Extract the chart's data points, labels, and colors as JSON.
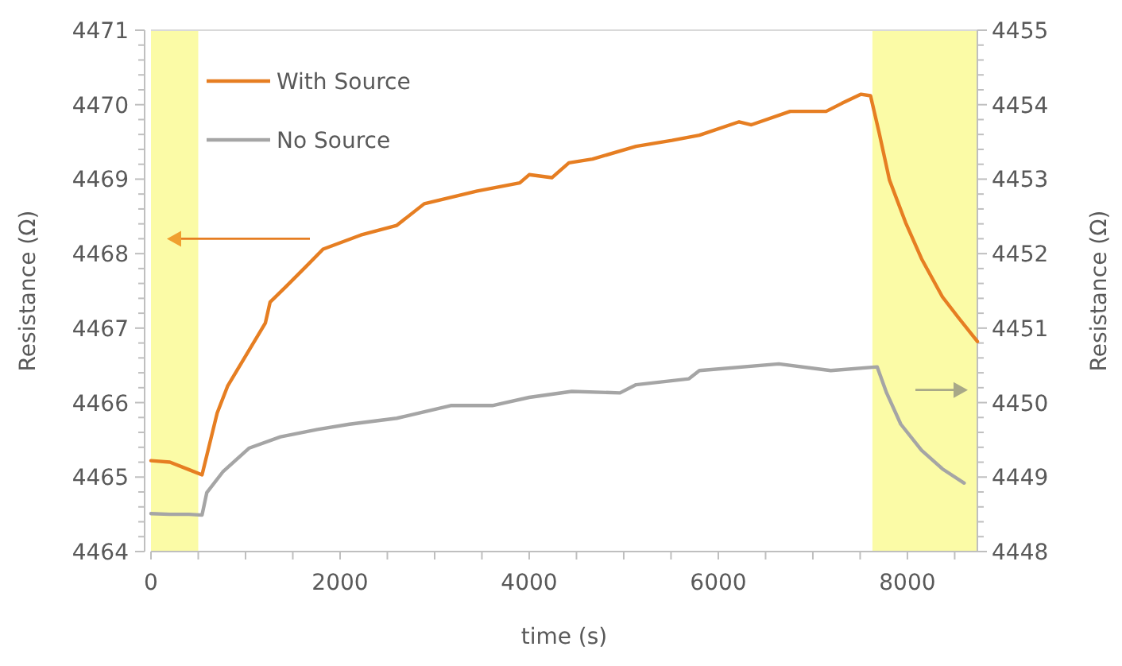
{
  "chart_data": {
    "type": "line",
    "xlabel": "time (s)",
    "ylabel": "Resistance (Ω)",
    "y2label": "Resistance (Ω)",
    "legend": "top left",
    "grid": false,
    "line_style": "solid",
    "marker": "none",
    "xlim": [
      0,
      8740
    ],
    "ylim": [
      4464,
      4471
    ],
    "y2lim": [
      4448,
      4455
    ],
    "xticks": [
      0,
      {
        "value": 500,
        "label": null
      },
      {
        "value": 1000,
        "label": null
      },
      {
        "value": 1500,
        "label": null
      },
      2000,
      {
        "value": 2500,
        "label": null
      },
      {
        "value": 3000,
        "label": null
      },
      {
        "value": 3500,
        "label": null
      },
      4000,
      {
        "value": 4500,
        "label": null
      },
      {
        "value": 5000,
        "label": null
      },
      {
        "value": 5500,
        "label": null
      },
      6000,
      {
        "value": 6500,
        "label": null
      },
      {
        "value": 7000,
        "label": null
      },
      {
        "value": 7500,
        "label": null
      },
      8000,
      {
        "value": 8500,
        "label": null
      }
    ],
    "yticks": [
      4464,
      {
        "value": 4464.2,
        "label": null
      },
      {
        "value": 4464.4,
        "label": null
      },
      {
        "value": 4464.6,
        "label": null
      },
      {
        "value": 4464.8,
        "label": null
      },
      4465,
      {
        "value": 4465.2,
        "label": null
      },
      {
        "value": 4465.4,
        "label": null
      },
      {
        "value": 4465.6,
        "label": null
      },
      {
        "value": 4465.8,
        "label": null
      },
      4466,
      {
        "value": 4466.2,
        "label": null
      },
      {
        "value": 4466.4,
        "label": null
      },
      {
        "value": 4466.6,
        "label": null
      },
      {
        "value": 4466.8,
        "label": null
      },
      4467,
      {
        "value": 4467.2,
        "label": null
      },
      {
        "value": 4467.4,
        "label": null
      },
      {
        "value": 4467.6,
        "label": null
      },
      {
        "value": 4467.8,
        "label": null
      },
      4468,
      {
        "value": 4468.2,
        "label": null
      },
      {
        "value": 4468.4,
        "label": null
      },
      {
        "value": 4468.6,
        "label": null
      },
      {
        "value": 4468.8,
        "label": null
      },
      4469,
      {
        "value": 4469.2,
        "label": null
      },
      {
        "value": 4469.4,
        "label": null
      },
      {
        "value": 4469.6,
        "label": null
      },
      {
        "value": 4469.8,
        "label": null
      },
      4470,
      {
        "value": 4470.2,
        "label": null
      },
      {
        "value": 4470.4,
        "label": null
      },
      {
        "value": 4470.6,
        "label": null
      },
      {
        "value": 4470.8,
        "label": null
      },
      4471
    ],
    "y2ticks": [
      4448,
      {
        "value": 4448.2,
        "label": null
      },
      {
        "value": 4448.4,
        "label": null
      },
      {
        "value": 4448.6,
        "label": null
      },
      {
        "value": 4448.8,
        "label": null
      },
      4449,
      {
        "value": 4449.2,
        "label": null
      },
      {
        "value": 4449.4,
        "label": null
      },
      {
        "value": 4449.6,
        "label": null
      },
      {
        "value": 4449.8,
        "label": null
      },
      4450,
      {
        "value": 4450.2,
        "label": null
      },
      {
        "value": 4450.4,
        "label": null
      },
      {
        "value": 4450.6,
        "label": null
      },
      {
        "value": 4450.8,
        "label": null
      },
      4451,
      {
        "value": 4451.2,
        "label": null
      },
      {
        "value": 4451.4,
        "label": null
      },
      {
        "value": 4451.6,
        "label": null
      },
      {
        "value": 4451.8,
        "label": null
      },
      4452,
      {
        "value": 4452.2,
        "label": null
      },
      {
        "value": 4452.4,
        "label": null
      },
      {
        "value": 4452.6,
        "label": null
      },
      {
        "value": 4452.8,
        "label": null
      },
      4453,
      {
        "value": 4453.2,
        "label": null
      },
      {
        "value": 4453.4,
        "label": null
      },
      {
        "value": 4453.6,
        "label": null
      },
      {
        "value": 4453.8,
        "label": null
      },
      4454,
      {
        "value": 4454.2,
        "label": null
      },
      {
        "value": 4454.4,
        "label": null
      },
      {
        "value": 4454.6,
        "label": null
      },
      {
        "value": 4454.8,
        "label": null
      },
      4455
    ],
    "bands": [
      {
        "axis": "x",
        "from": 0,
        "to": 500,
        "color": "#fbfba6"
      },
      {
        "axis": "x",
        "from": 7630,
        "to": 8740,
        "color": "#fbfba6"
      }
    ],
    "series": [
      {
        "name": "With Source",
        "color": "#e67e22",
        "x": [
          0,
          200,
          400,
          540,
          700,
          810,
          1040,
          1210,
          1260,
          1430,
          1650,
          1820,
          2220,
          2600,
          2890,
          3450,
          3900,
          4000,
          4240,
          4420,
          4670,
          5130,
          5510,
          5800,
          6220,
          6350,
          6760,
          7140,
          7310,
          7510,
          7610,
          7700,
          7810,
          7980,
          8150,
          8370,
          8540,
          8740
        ],
        "values": [
          4465.22,
          4465.2,
          4465.1,
          4465.03,
          4465.86,
          4466.22,
          4466.71,
          4467.07,
          4467.35,
          4467.56,
          4467.84,
          4468.06,
          4468.25,
          4468.38,
          4468.67,
          4468.84,
          4468.95,
          4469.06,
          4469.02,
          4469.22,
          4469.27,
          4469.44,
          4469.52,
          4469.59,
          4469.77,
          4469.73,
          4469.91,
          4469.91,
          4470.02,
          4470.14,
          4470.12,
          4469.63,
          4468.99,
          4468.42,
          4467.93,
          4467.42,
          4467.14,
          4466.82
        ]
      },
      {
        "name": "No Source",
        "color": "#a5a5a5",
        "axis": "y2",
        "x": [
          0,
          200,
          400,
          540,
          590,
          760,
          1040,
          1370,
          1760,
          2100,
          2600,
          3170,
          3610,
          4000,
          4450,
          4960,
          5130,
          5690,
          5800,
          6640,
          7190,
          7680,
          7780,
          7930,
          8150,
          8370,
          8600
        ],
        "values": [
          4448.51,
          4448.5,
          4448.5,
          4448.49,
          4448.79,
          4449.07,
          4449.39,
          4449.54,
          4449.64,
          4449.71,
          4449.79,
          4449.96,
          4449.96,
          4450.07,
          4450.15,
          4450.13,
          4450.24,
          4450.32,
          4450.43,
          4450.52,
          4450.43,
          4450.48,
          4450.13,
          4449.71,
          4449.36,
          4449.11,
          4448.92
        ]
      }
    ]
  }
}
